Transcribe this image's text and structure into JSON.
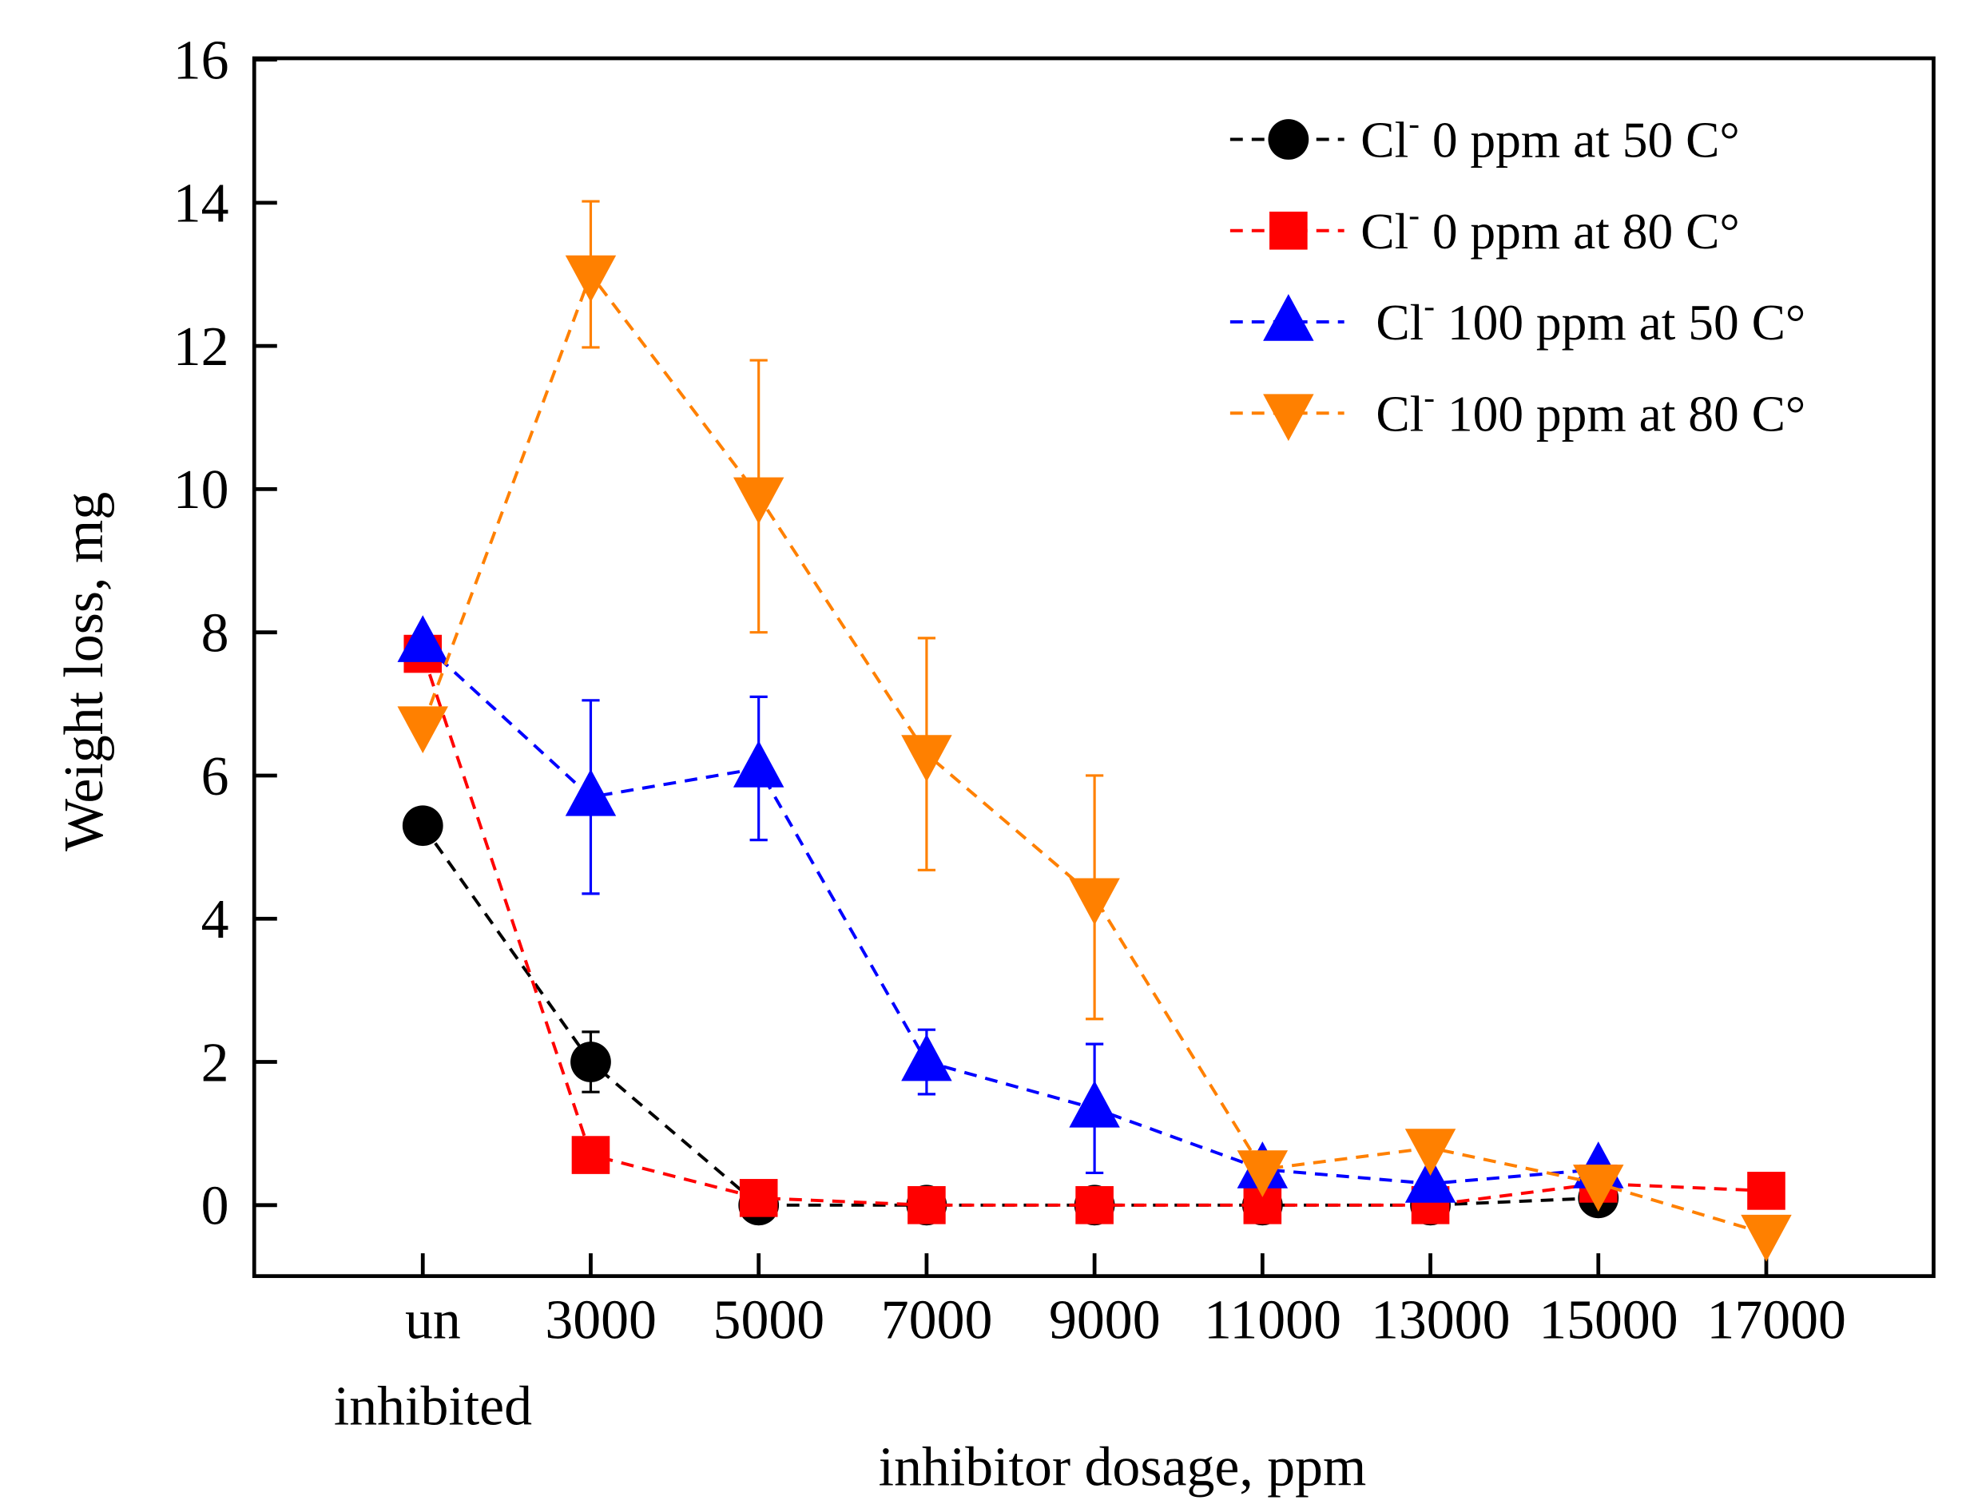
{
  "chart_data": {
    "type": "line",
    "title": "",
    "xlabel": "inhibitor dosage, ppm",
    "ylabel": "Weight loss, mg",
    "categories": [
      "un inhibited",
      "3000",
      "5000",
      "7000",
      "9000",
      "11000",
      "13000",
      "15000",
      "17000"
    ],
    "category_lines": [
      [
        "un",
        "inhibited"
      ],
      [
        "3000"
      ],
      [
        "5000"
      ],
      [
        "7000"
      ],
      [
        "9000"
      ],
      [
        "11000"
      ],
      [
        "13000"
      ],
      [
        "15000"
      ],
      [
        "17000"
      ]
    ],
    "ylim": [
      -1,
      16
    ],
    "yticks": [
      0,
      2,
      4,
      6,
      8,
      10,
      12,
      14,
      16
    ],
    "grid": false,
    "legend_position": "top-right",
    "series": [
      {
        "name": "Cl- 0 ppm at 50 C°",
        "label_base": "Cl",
        "label_sup": "-",
        "label_rest": " 0 ppm at 50 C°",
        "color": "#000000",
        "marker": "circle",
        "values": [
          5.3,
          2.0,
          0,
          0,
          0,
          0,
          0,
          0.1,
          null
        ],
        "errors": [
          null,
          0.42,
          null,
          null,
          null,
          null,
          null,
          null,
          null
        ]
      },
      {
        "name": "Cl- 0 ppm  at 80 C°",
        "label_base": "Cl",
        "label_sup": "-",
        "label_rest": " 0 ppm  at 80 C°",
        "color": "#ff0000",
        "marker": "square",
        "values": [
          7.7,
          0.7,
          0.1,
          0,
          0,
          0,
          0,
          0.3,
          0.2
        ],
        "errors": [
          null,
          null,
          null,
          null,
          null,
          null,
          null,
          null,
          null
        ]
      },
      {
        "name": "Cl- 100 ppm at 50 C°",
        "label_base": "Cl",
        "label_sup": "-",
        "label_rest": " 100 ppm at 50 C°",
        "color": "#0000ff",
        "marker": "triangle-up",
        "values": [
          7.85,
          5.7,
          6.1,
          2.0,
          1.35,
          0.5,
          0.3,
          0.5,
          null
        ],
        "errors": [
          null,
          1.35,
          1.0,
          0.45,
          0.9,
          null,
          null,
          null,
          null
        ]
      },
      {
        "name": "Cl- 100 ppm at 80 C°",
        "label_base": "Cl",
        "label_sup": "-",
        "label_rest": " 100 ppm at 80 C°",
        "color": "#ff8000",
        "marker": "triangle-down",
        "values": [
          6.7,
          13.0,
          9.9,
          6.3,
          4.3,
          0.5,
          0.8,
          0.3,
          -0.4
        ],
        "errors": [
          null,
          1.02,
          1.9,
          1.62,
          1.7,
          null,
          null,
          null,
          null
        ]
      }
    ]
  }
}
